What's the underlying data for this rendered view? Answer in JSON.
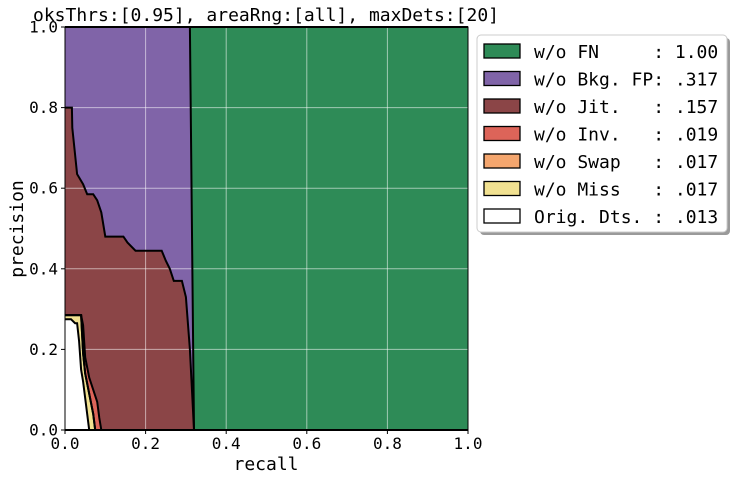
{
  "chart_data": {
    "type": "area",
    "title": "oksThrs:[0.95], areaRng:[all], maxDets:[20]",
    "xlabel": "recall",
    "ylabel": "precision",
    "xlim": [
      0.0,
      1.0
    ],
    "ylim": [
      0.0,
      1.0
    ],
    "xticks": [
      "0.0",
      "0.2",
      "0.4",
      "0.6",
      "0.8",
      "1.0"
    ],
    "yticks": [
      "0.0",
      "0.2",
      "0.4",
      "0.6",
      "0.8",
      "1.0"
    ],
    "grid": true,
    "legend_position": "outside-top-right",
    "series": [
      {
        "name": "w/o FN",
        "score": "1.00",
        "color": "#2e8b57",
        "x": [
          0.0,
          1.0
        ],
        "y": [
          1.0,
          1.0
        ]
      },
      {
        "name": "w/o Bkg. FP",
        "score": ".317",
        "color": "#8064a8",
        "x": [
          0.0,
          0.31,
          0.31,
          0.32
        ],
        "y": [
          1.0,
          1.0,
          1.0,
          0.0
        ]
      },
      {
        "name": "w/o Jit.",
        "score": ".157",
        "color": "#8b4547",
        "x": [
          0.0,
          0.017,
          0.018,
          0.03,
          0.045,
          0.055,
          0.07,
          0.08,
          0.09,
          0.1,
          0.145,
          0.155,
          0.175,
          0.22,
          0.24,
          0.25,
          0.26,
          0.27,
          0.29,
          0.3,
          0.31,
          0.32
        ],
        "y": [
          0.8,
          0.8,
          0.75,
          0.635,
          0.61,
          0.585,
          0.585,
          0.57,
          0.54,
          0.48,
          0.48,
          0.465,
          0.445,
          0.445,
          0.445,
          0.42,
          0.4,
          0.37,
          0.37,
          0.33,
          0.2,
          0.0
        ]
      },
      {
        "name": "w/o Inv.",
        "score": ".019",
        "color": "#dd6459",
        "x": [
          0.0,
          0.04,
          0.045,
          0.05,
          0.06,
          0.07,
          0.08,
          0.085,
          0.09
        ],
        "y": [
          0.285,
          0.285,
          0.26,
          0.18,
          0.13,
          0.1,
          0.07,
          0.03,
          0.0
        ]
      },
      {
        "name": "w/o Swap",
        "score": ".017",
        "color": "#f4a66e",
        "x": [
          0.0,
          0.04,
          0.045,
          0.05,
          0.06,
          0.07,
          0.075
        ],
        "y": [
          0.285,
          0.285,
          0.19,
          0.14,
          0.09,
          0.04,
          0.0
        ]
      },
      {
        "name": "w/o Miss",
        "score": ".017",
        "color": "#f1e191",
        "x": [
          0.0,
          0.04,
          0.045,
          0.05,
          0.06,
          0.07,
          0.075
        ],
        "y": [
          0.285,
          0.285,
          0.19,
          0.14,
          0.09,
          0.04,
          0.0
        ]
      },
      {
        "name": "Orig. Dts.",
        "score": ".013",
        "color": "#ffffff",
        "x": [
          0.0,
          0.015,
          0.025,
          0.03,
          0.035,
          0.04,
          0.045,
          0.06
        ],
        "y": [
          0.275,
          0.275,
          0.265,
          0.265,
          0.22,
          0.15,
          0.12,
          0.0
        ]
      }
    ]
  }
}
